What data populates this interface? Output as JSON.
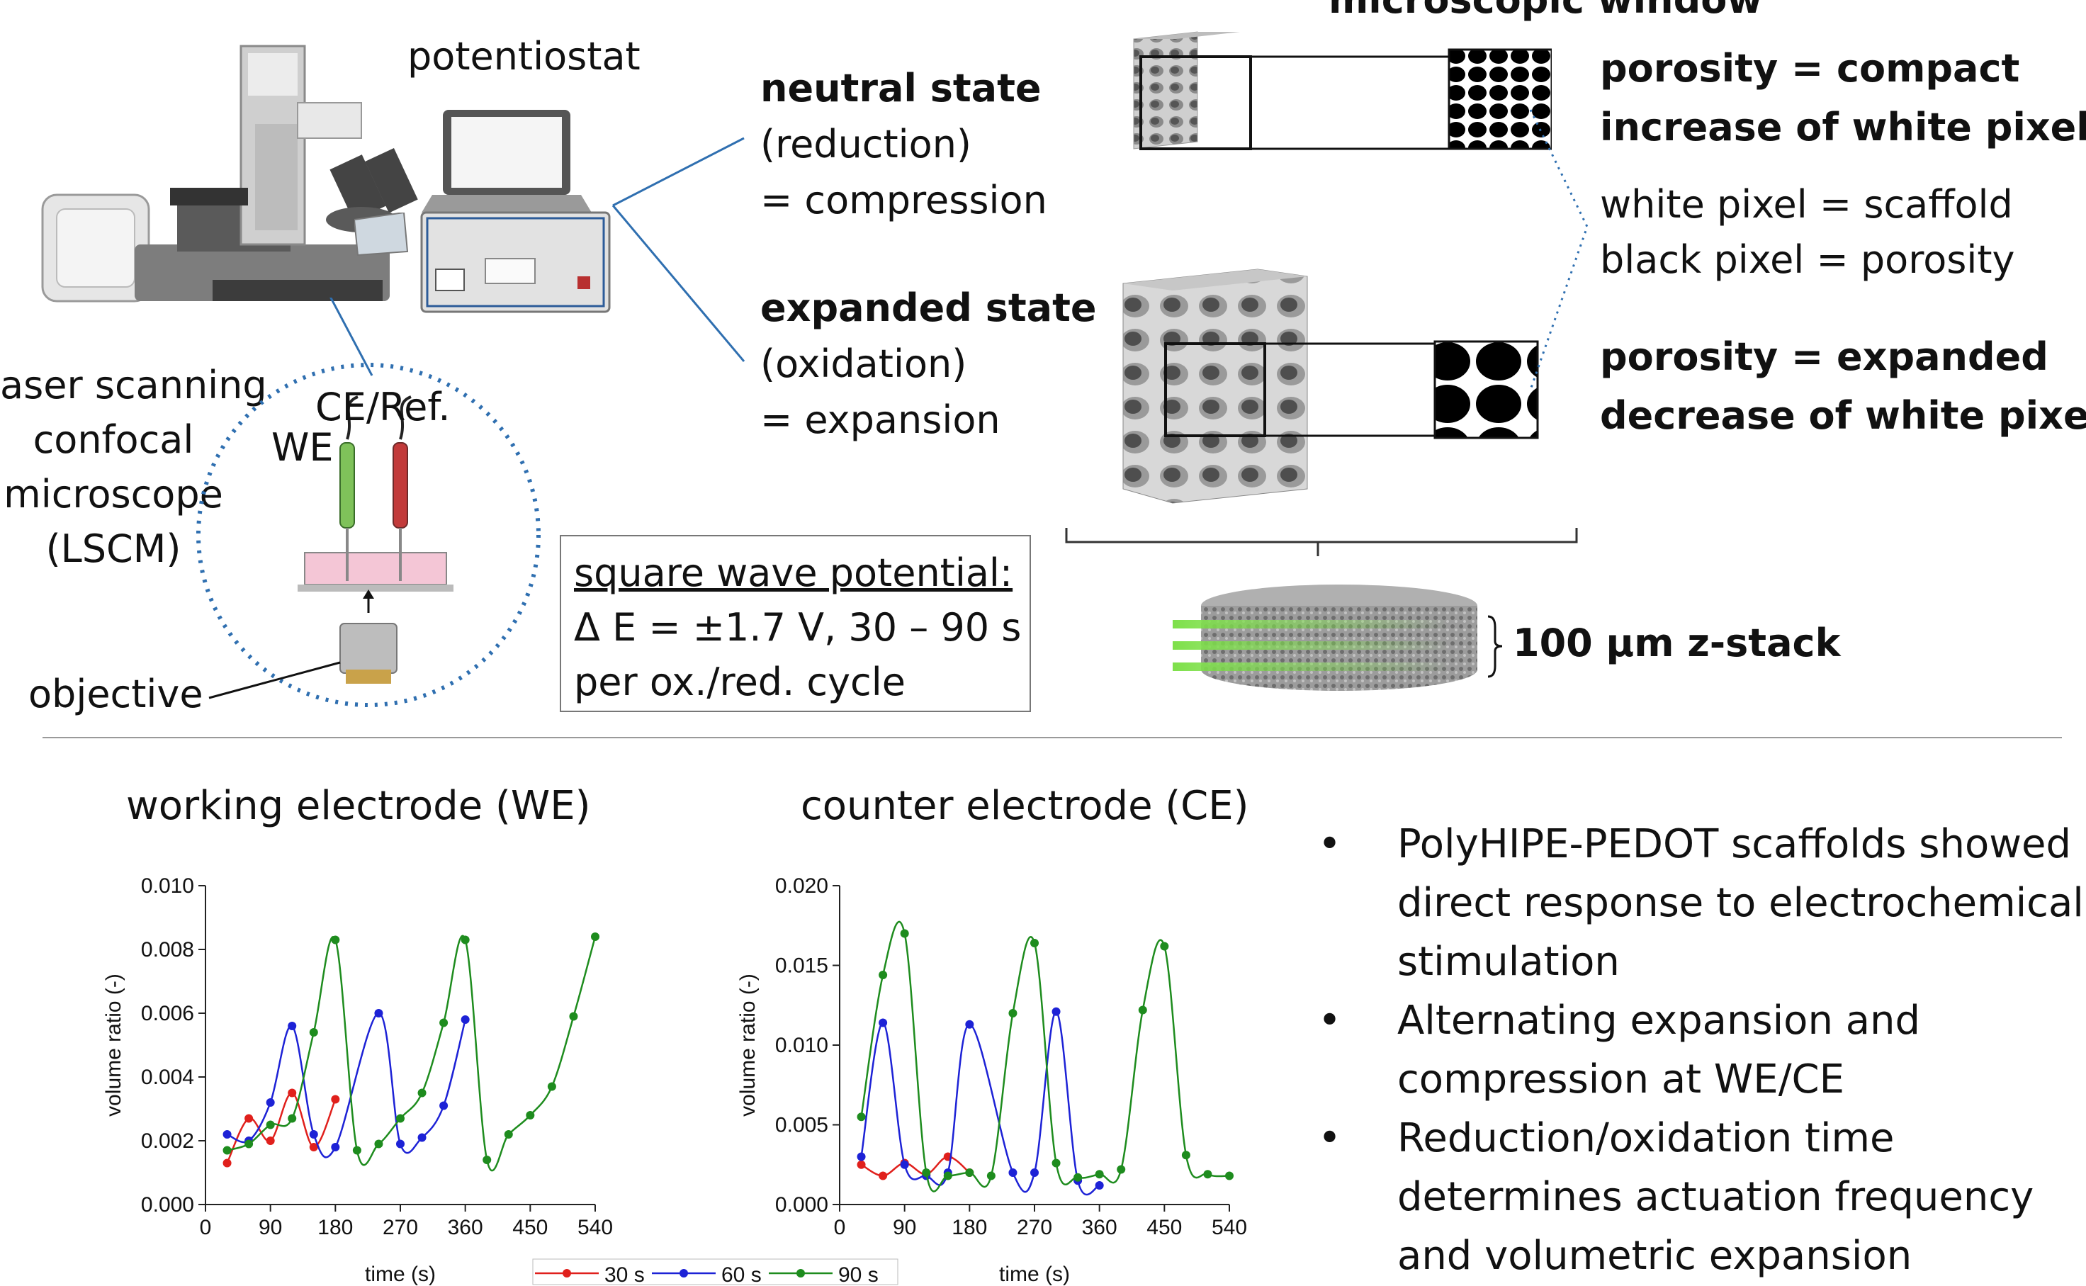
{
  "top": {
    "potentiostat_label": "potentiostat",
    "lscm_label_lines": [
      "aser scanning",
      "confocal",
      "microscope",
      "(LSCM)"
    ],
    "ce_ref_label": "CE/Ref.",
    "we_label": "WE",
    "objective_label": "objective",
    "neutral": {
      "title": "neutral state",
      "line1": "(reduction)",
      "line2": "= compression"
    },
    "expanded": {
      "title": "expanded state",
      "line1": "(oxidation)",
      "line2": "= expansion"
    },
    "square_wave": {
      "title": "square wave potential:",
      "line1": "Δ E = ±1.7 V, 30 – 90 s",
      "line2": "per ox./red. cycle"
    },
    "microscopic_window": "microscopic window",
    "porosity_compact": {
      "line1": "porosity = compact",
      "line2": "increase of white pixel"
    },
    "pixel_legend": {
      "line1": "white pixel = scaffold",
      "line2": "black pixel = porosity"
    },
    "porosity_expanded": {
      "line1": "porosity = expanded",
      "line2": "decrease of white pixel"
    },
    "zstack_label": "100 µm z-stack"
  },
  "bullets": [
    [
      "PolyHIPE-PEDOT scaffolds showed",
      "direct response to electrochemical",
      "stimulation"
    ],
    [
      "Alternating expansion and",
      "compression at WE/CE"
    ],
    [
      "Reduction/oxidation time",
      "determines actuation frequency",
      "and  volumetric expansion"
    ]
  ],
  "colors": {
    "s30": "#e0201c",
    "s60": "#1d22d6",
    "s90": "#1e8c1e",
    "circle": "#2f6fb0"
  },
  "chart_data": [
    {
      "type": "line",
      "title": "working electrode (WE)",
      "xlabel": "time (s)",
      "ylabel": "volume ratio (-)",
      "xlim": [
        0,
        540
      ],
      "ylim": [
        0,
        0.01
      ],
      "xticks": [
        0,
        90,
        180,
        270,
        360,
        450,
        540
      ],
      "yticks": [
        0.0,
        0.002,
        0.004,
        0.006,
        0.008,
        0.01
      ],
      "ytick_labels": [
        "0.000",
        "0.002",
        "0.004",
        "0.006",
        "0.008",
        "0.010"
      ],
      "series": [
        {
          "name": "30 s",
          "color": "#e0201c",
          "x": [
            30,
            60,
            90,
            120,
            150,
            180
          ],
          "y": [
            0.0013,
            0.0027,
            0.002,
            0.0035,
            0.0018,
            0.0033
          ]
        },
        {
          "name": "60 s",
          "color": "#1d22d6",
          "x": [
            30,
            60,
            90,
            120,
            150,
            180,
            240,
            270,
            300,
            330,
            360
          ],
          "y": [
            0.0022,
            0.002,
            0.0032,
            0.0056,
            0.0022,
            0.0018,
            0.006,
            0.0019,
            0.0021,
            0.0031,
            0.0058
          ]
        },
        {
          "name": "90 s",
          "color": "#1e8c1e",
          "x": [
            30,
            60,
            90,
            120,
            150,
            180,
            210,
            240,
            270,
            300,
            330,
            360,
            390,
            420,
            450,
            480,
            510,
            540
          ],
          "y": [
            0.0017,
            0.0019,
            0.0025,
            0.0027,
            0.0054,
            0.0083,
            0.0017,
            0.0019,
            0.0027,
            0.0035,
            0.0057,
            0.0083,
            0.0014,
            0.0022,
            0.0028,
            0.0037,
            0.0059,
            0.0084
          ]
        }
      ]
    },
    {
      "type": "line",
      "title": "counter electrode (CE)",
      "xlabel": "time (s)",
      "ylabel": "volume ratio (-)",
      "xlim": [
        0,
        540
      ],
      "ylim": [
        0,
        0.02
      ],
      "xticks": [
        0,
        90,
        180,
        270,
        360,
        450,
        540
      ],
      "yticks": [
        0.0,
        0.005,
        0.01,
        0.015,
        0.02
      ],
      "ytick_labels": [
        "0.000",
        "0.005",
        "0.010",
        "0.015",
        "0.020"
      ],
      "series": [
        {
          "name": "30 s",
          "color": "#e0201c",
          "x": [
            30,
            60,
            90,
            120,
            150,
            180
          ],
          "y": [
            0.0025,
            0.0018,
            0.0026,
            0.0019,
            0.003,
            0.002
          ]
        },
        {
          "name": "60 s",
          "color": "#1d22d6",
          "x": [
            30,
            60,
            90,
            120,
            150,
            180,
            240,
            270,
            300,
            330,
            360
          ],
          "y": [
            0.003,
            0.0114,
            0.0025,
            0.0018,
            0.002,
            0.0113,
            0.002,
            0.002,
            0.0121,
            0.0015,
            0.0012
          ]
        },
        {
          "name": "90 s",
          "color": "#1e8c1e",
          "x": [
            30,
            60,
            90,
            120,
            150,
            180,
            210,
            240,
            270,
            300,
            330,
            360,
            390,
            420,
            450,
            480,
            510,
            540
          ],
          "y": [
            0.0055,
            0.0144,
            0.017,
            0.002,
            0.0018,
            0.002,
            0.0018,
            0.012,
            0.0164,
            0.0026,
            0.0017,
            0.0019,
            0.0022,
            0.0122,
            0.0162,
            0.0031,
            0.0019,
            0.0018
          ]
        }
      ]
    }
  ],
  "legend": [
    "30 s",
    "60 s",
    "90 s"
  ]
}
